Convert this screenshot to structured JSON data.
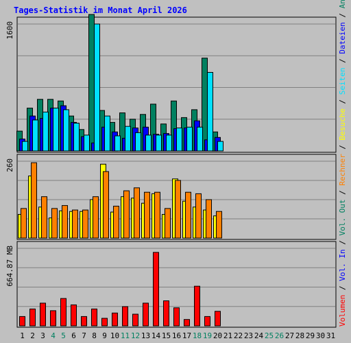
{
  "chart_data": {
    "type": "bar",
    "title": "Tages-Statistik im Monat April 2026",
    "x_ticks": [
      "1",
      "2",
      "3",
      "4",
      "5",
      "6",
      "7",
      "8",
      "9",
      "10",
      "11",
      "12",
      "13",
      "14",
      "15",
      "16",
      "17",
      "18",
      "19",
      "20",
      "21",
      "22",
      "23",
      "24",
      "25",
      "26",
      "27",
      "28",
      "29",
      "30",
      "31"
    ],
    "weekend_days": [
      4,
      5,
      11,
      12,
      18,
      19,
      25,
      26
    ],
    "grid": true,
    "panels": [
      {
        "id": "top",
        "ymax_label": "1600",
        "ymax": 1600,
        "series": [
          {
            "name": "Anfragen",
            "color": "#008060",
            "values": [
              250,
              540,
              650,
              650,
              630,
              440,
              270,
              1720,
              510,
              360,
              480,
              400,
              460,
              590,
              340,
              630,
              420,
              520,
              1170,
              240
            ]
          },
          {
            "name": "Dateien",
            "color": "#0000ff",
            "values": [
              150,
              440,
              410,
              540,
              570,
              360,
              180,
              100,
              300,
              240,
              160,
              290,
              300,
              210,
              220,
              280,
              290,
              380,
              140,
              170
            ]
          },
          {
            "name": "Seiten",
            "color": "#00e0ff",
            "values": [
              120,
              390,
              490,
              540,
              520,
              350,
              200,
              1600,
              440,
              190,
              310,
              230,
              200,
              200,
              200,
              290,
              300,
              300,
              990,
              120
            ]
          }
        ]
      },
      {
        "id": "middle",
        "ymax_label": "260",
        "ymax": 260,
        "series": [
          {
            "name": "Besuche",
            "color": "#ffff00",
            "values": [
              80,
              210,
              105,
              68,
              92,
              90,
              90,
              130,
              250,
              88,
              140,
              135,
              118,
              150,
              80,
              200,
              125,
              105,
              95,
              75
            ]
          },
          {
            "name": "Rechner",
            "color": "#ff8000",
            "values": [
              100,
              255,
              140,
              100,
              110,
              95,
              95,
              140,
              225,
              108,
              160,
              170,
              155,
              155,
              100,
              195,
              155,
              150,
              130,
              90
            ]
          }
        ]
      },
      {
        "id": "bottom",
        "ymax_label": "664.87 MB",
        "ymax": 664.87,
        "series": [
          {
            "name": "Volumen",
            "color": "#ff0000",
            "values": [
              80,
              145,
              195,
              130,
              235,
              180,
              80,
              145,
              65,
              110,
              165,
              100,
              195,
              630,
              215,
              155,
              55,
              340,
              80,
              125
            ]
          }
        ]
      }
    ],
    "legend_right": [
      {
        "text": "Volumen",
        "color": "#ff0000"
      },
      {
        "text": " / ",
        "color": "#000000"
      },
      {
        "text": "Vol. In",
        "color": "#0000ff"
      },
      {
        "text": " / ",
        "color": "#000000"
      },
      {
        "text": "Vol. Out",
        "color": "#008060"
      },
      {
        "text": " / ",
        "color": "#000000"
      },
      {
        "text": "Rechner",
        "color": "#ff8000"
      },
      {
        "text": " / ",
        "color": "#000000"
      },
      {
        "text": "Besuche",
        "color": "#ffff00"
      },
      {
        "text": " / ",
        "color": "#000000"
      },
      {
        "text": "Seiten",
        "color": "#00e0ff"
      },
      {
        "text": " / ",
        "color": "#000000"
      },
      {
        "text": "Dateien",
        "color": "#0000ff"
      },
      {
        "text": " / ",
        "color": "#000000"
      },
      {
        "text": "Anfragen",
        "color": "#008060"
      }
    ],
    "colors": {
      "background": "#c0c0c0",
      "plot_background": "#c0c0c0",
      "title": "#0000ff",
      "gridline": "#808080",
      "weekend_label": "#008060",
      "weekday_label": "#000000"
    }
  }
}
